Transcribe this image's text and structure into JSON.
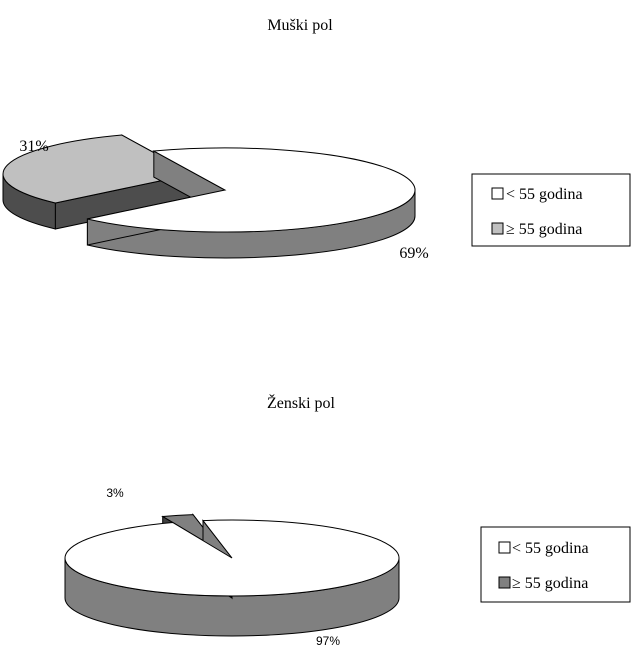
{
  "chart_data": [
    {
      "type": "pie",
      "title": "Muški pol",
      "categories": [
        "< 55 godina",
        "≥ 55 godina"
      ],
      "values": [
        69,
        31
      ],
      "data_labels": [
        "69%",
        "31%"
      ],
      "legend": {
        "placement": "right",
        "entries": [
          "< 55 godina",
          "≥ 55 godina"
        ]
      },
      "colors": {
        "top": [
          "#ffffff",
          "#c0c0c0"
        ],
        "side": [
          "#808080",
          "#4d4d4d"
        ]
      }
    },
    {
      "type": "pie",
      "title": "Ženski pol",
      "categories": [
        "< 55 godina",
        "≥ 55 godina"
      ],
      "values": [
        97,
        3
      ],
      "data_labels": [
        "97%",
        "3%"
      ],
      "legend": {
        "placement": "right",
        "entries": [
          "< 55 godina",
          "≥ 55 godina"
        ]
      },
      "colors": {
        "top": [
          "#ffffff",
          "#808080"
        ],
        "side": [
          "#808080",
          "#404040"
        ]
      }
    }
  ]
}
